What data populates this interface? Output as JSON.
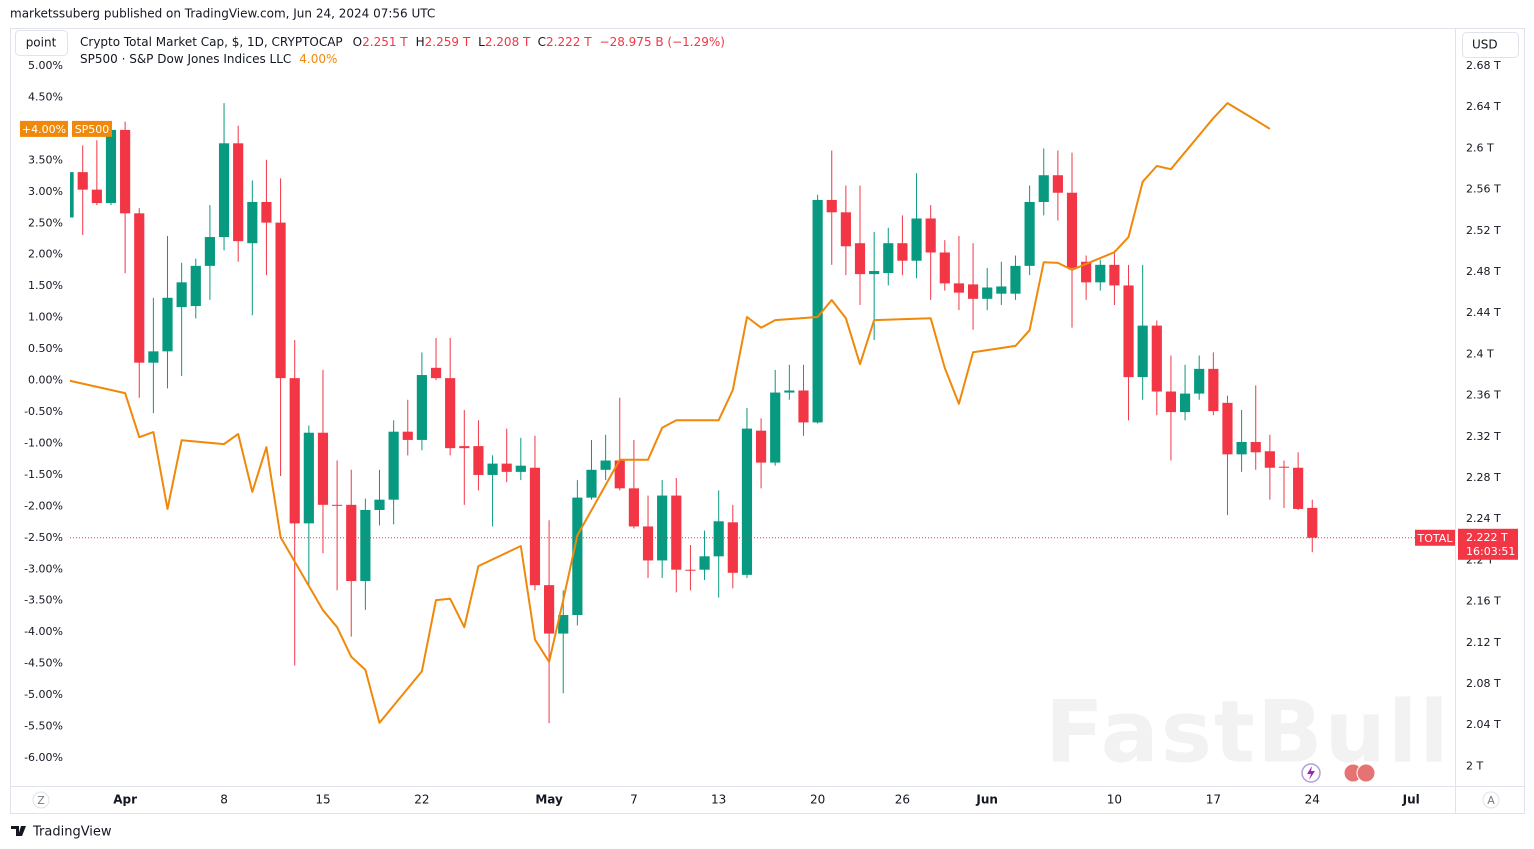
{
  "page": {
    "published": "marketssuberg published on TradingView.com, Jun 24, 2024 07:56 UTC",
    "mode_button": "point",
    "currency_button": "USD",
    "zoom_left": "Z",
    "zoom_right": "A",
    "brand": "TradingView",
    "watermark": "FastBull"
  },
  "chart_data": {
    "type": "candlestick",
    "title": "Crypto Total Market Cap, $, 1D, CRYPTOCAP",
    "ohlc_legend": [
      {
        "key": "O",
        "value": "2.251 T"
      },
      {
        "key": "H",
        "value": "2.259 T"
      },
      {
        "key": "L",
        "value": "2.208 T"
      },
      {
        "key": "C",
        "value": "2.222 T"
      }
    ],
    "change": "−28.975 B (−1.29%)",
    "xlim": [
      -3.9,
      94.1
    ],
    "xticks": [
      {
        "value": 0,
        "label": "Apr"
      },
      {
        "value": 7,
        "label": "8"
      },
      {
        "value": 14,
        "label": "15"
      },
      {
        "value": 21,
        "label": "22"
      },
      {
        "value": 30,
        "label": "May"
      },
      {
        "value": 36,
        "label": "7"
      },
      {
        "value": 42,
        "label": "13"
      },
      {
        "value": 49,
        "label": "20"
      },
      {
        "value": 55,
        "label": "26"
      },
      {
        "value": 61,
        "label": "Jun"
      },
      {
        "value": 70,
        "label": "10"
      },
      {
        "value": 77,
        "label": "17"
      },
      {
        "value": 84,
        "label": "24"
      },
      {
        "value": 91,
        "label": "Jul"
      }
    ],
    "ylim": [
      -6.445,
      5.572
    ],
    "yticks": [
      {
        "value": 5,
        "label": "5.00%"
      },
      {
        "value": 4.5,
        "label": "4.50%"
      },
      {
        "value": 4,
        "label": "4.00%"
      },
      {
        "value": 3.5,
        "label": "3.50%"
      },
      {
        "value": 3,
        "label": "3.00%"
      },
      {
        "value": 2.5,
        "label": "2.50%"
      },
      {
        "value": 2,
        "label": "2.00%"
      },
      {
        "value": 1.5,
        "label": "1.50%"
      },
      {
        "value": 1,
        "label": "1.00%"
      },
      {
        "value": 0.5,
        "label": "0.50%"
      },
      {
        "value": 0,
        "label": "0.00%"
      },
      {
        "value": -0.5,
        "label": "-0.50%"
      },
      {
        "value": -1,
        "label": "-1.00%"
      },
      {
        "value": -1.5,
        "label": "-1.50%"
      },
      {
        "value": -2,
        "label": "-2.00%"
      },
      {
        "value": -2.5,
        "label": "-2.50%"
      },
      {
        "value": -3,
        "label": "-3.00%"
      },
      {
        "value": -3.5,
        "label": "-3.50%"
      },
      {
        "value": -4,
        "label": "-4.00%"
      },
      {
        "value": -4.5,
        "label": "-4.50%"
      },
      {
        "value": -5,
        "label": "-5.00%"
      },
      {
        "value": -5.5,
        "label": "-5.50%"
      },
      {
        "value": -6,
        "label": "-6.00%"
      }
    ],
    "y2lim": [
      1.981,
      2.715
    ],
    "y2ticks": [
      {
        "value": 2.68,
        "label": "2.68 T"
      },
      {
        "value": 2.64,
        "label": "2.64 T"
      },
      {
        "value": 2.6,
        "label": "2.6 T"
      },
      {
        "value": 2.56,
        "label": "2.56 T"
      },
      {
        "value": 2.52,
        "label": "2.52 T"
      },
      {
        "value": 2.48,
        "label": "2.48 T"
      },
      {
        "value": 2.44,
        "label": "2.44 T"
      },
      {
        "value": 2.4,
        "label": "2.4 T"
      },
      {
        "value": 2.36,
        "label": "2.36 T"
      },
      {
        "value": 2.32,
        "label": "2.32 T"
      },
      {
        "value": 2.28,
        "label": "2.28 T"
      },
      {
        "value": 2.24,
        "label": "2.24 T"
      },
      {
        "value": 2.2,
        "label": "2.2 T"
      },
      {
        "value": 2.16,
        "label": "2.16 T"
      },
      {
        "value": 2.12,
        "label": "2.12 T"
      },
      {
        "value": 2.08,
        "label": "2.08 T"
      },
      {
        "value": 2.04,
        "label": "2.04 T"
      },
      {
        "value": 2,
        "label": "2 T"
      }
    ],
    "grid": false,
    "series": [
      {
        "name": "TOTAL",
        "type": "candlestick",
        "axis": "y2",
        "up_color": "#089981",
        "down_color": "#f23645",
        "last_label": "2.222 T",
        "countdown": "16:03:51",
        "x": [
          -4,
          -3,
          -2,
          -1,
          0,
          1,
          2,
          3,
          4,
          5,
          6,
          7,
          8,
          9,
          10,
          11,
          12,
          13,
          14,
          15,
          16,
          17,
          18,
          19,
          20,
          21,
          22,
          23,
          24,
          25,
          26,
          27,
          28,
          29,
          30,
          31,
          32,
          33,
          34,
          35,
          36,
          37,
          38,
          39,
          40,
          41,
          42,
          43,
          44,
          45,
          46,
          47,
          48,
          49,
          50,
          51,
          52,
          53,
          54,
          55,
          56,
          57,
          58,
          59,
          60,
          61,
          62,
          63,
          64,
          65,
          66,
          67,
          68,
          69,
          70,
          71,
          72,
          73,
          74,
          75,
          76,
          77,
          78,
          79,
          80,
          81,
          82,
          83,
          84
        ],
        "open": [
          2.533,
          2.577,
          2.56,
          2.547,
          2.618,
          2.537,
          2.392,
          2.403,
          2.446,
          2.447,
          2.486,
          2.514,
          2.605,
          2.508,
          2.548,
          2.528,
          2.377,
          2.236,
          2.324,
          2.254,
          2.254,
          2.18,
          2.249,
          2.259,
          2.325,
          2.317,
          2.387,
          2.377,
          2.311,
          2.311,
          2.283,
          2.294,
          2.286,
          2.29,
          2.176,
          2.129,
          2.147,
          2.261,
          2.288,
          2.297,
          2.27,
          2.233,
          2.2,
          2.263,
          2.191,
          2.191,
          2.204,
          2.237,
          2.186,
          2.326,
          2.295,
          2.363,
          2.365,
          2.334,
          2.55,
          2.538,
          2.508,
          2.478,
          2.479,
          2.508,
          2.491,
          2.532,
          2.499,
          2.469,
          2.468,
          2.454,
          2.459,
          2.459,
          2.486,
          2.548,
          2.574,
          2.557,
          2.49,
          2.47,
          2.487,
          2.467,
          2.378,
          2.428,
          2.364,
          2.344,
          2.362,
          2.386,
          2.353,
          2.303,
          2.315,
          2.306,
          2.291,
          2.29,
          2.251
        ],
        "high": [
          2.579,
          2.603,
          2.608,
          2.623,
          2.626,
          2.542,
          2.455,
          2.515,
          2.489,
          2.493,
          2.545,
          2.644,
          2.622,
          2.569,
          2.589,
          2.571,
          2.414,
          2.331,
          2.385,
          2.297,
          2.288,
          2.26,
          2.288,
          2.336,
          2.356,
          2.402,
          2.416,
          2.416,
          2.346,
          2.336,
          2.302,
          2.328,
          2.319,
          2.321,
          2.239,
          2.171,
          2.278,
          2.317,
          2.322,
          2.358,
          2.317,
          2.263,
          2.278,
          2.28,
          2.215,
          2.229,
          2.268,
          2.254,
          2.348,
          2.338,
          2.385,
          2.39,
          2.39,
          2.555,
          2.598,
          2.564,
          2.564,
          2.519,
          2.523,
          2.535,
          2.576,
          2.545,
          2.511,
          2.515,
          2.508,
          2.484,
          2.49,
          2.496,
          2.564,
          2.6,
          2.598,
          2.596,
          2.496,
          2.492,
          2.501,
          2.487,
          2.487,
          2.433,
          2.399,
          2.39,
          2.399,
          2.402,
          2.36,
          2.346,
          2.37,
          2.322,
          2.297,
          2.305,
          2.259
        ],
        "low": [
          2.532,
          2.516,
          2.545,
          2.545,
          2.479,
          2.358,
          2.343,
          2.367,
          2.379,
          2.435,
          2.453,
          2.501,
          2.49,
          2.438,
          2.477,
          2.282,
          2.098,
          2.175,
          2.207,
          2.171,
          2.126,
          2.152,
          2.234,
          2.235,
          2.302,
          2.307,
          2.375,
          2.302,
          2.254,
          2.268,
          2.233,
          2.276,
          2.278,
          2.171,
          2.042,
          2.071,
          2.137,
          2.259,
          2.278,
          2.268,
          2.231,
          2.183,
          2.183,
          2.169,
          2.171,
          2.181,
          2.164,
          2.173,
          2.183,
          2.27,
          2.292,
          2.356,
          2.321,
          2.333,
          2.487,
          2.477,
          2.448,
          2.414,
          2.467,
          2.477,
          2.474,
          2.453,
          2.462,
          2.443,
          2.424,
          2.443,
          2.448,
          2.453,
          2.477,
          2.535,
          2.53,
          2.426,
          2.453,
          2.462,
          2.448,
          2.336,
          2.356,
          2.341,
          2.297,
          2.336,
          2.356,
          2.341,
          2.244,
          2.286,
          2.288,
          2.259,
          2.251,
          2.249,
          2.208
        ],
        "close": [
          2.577,
          2.56,
          2.547,
          2.618,
          2.537,
          2.392,
          2.403,
          2.455,
          2.47,
          2.486,
          2.514,
          2.605,
          2.51,
          2.548,
          2.528,
          2.377,
          2.236,
          2.324,
          2.254,
          2.253,
          2.18,
          2.249,
          2.259,
          2.325,
          2.317,
          2.38,
          2.377,
          2.309,
          2.309,
          2.283,
          2.294,
          2.286,
          2.292,
          2.176,
          2.129,
          2.147,
          2.261,
          2.288,
          2.297,
          2.27,
          2.233,
          2.2,
          2.263,
          2.191,
          2.19,
          2.204,
          2.238,
          2.188,
          2.328,
          2.295,
          2.363,
          2.365,
          2.334,
          2.55,
          2.538,
          2.505,
          2.478,
          2.481,
          2.508,
          2.491,
          2.532,
          2.499,
          2.469,
          2.46,
          2.454,
          2.465,
          2.466,
          2.486,
          2.548,
          2.574,
          2.557,
          2.484,
          2.47,
          2.487,
          2.467,
          2.378,
          2.428,
          2.364,
          2.344,
          2.362,
          2.386,
          2.345,
          2.303,
          2.315,
          2.305,
          2.29,
          2.29,
          2.25,
          2.222
        ]
      },
      {
        "name": "SP500",
        "type": "line",
        "axis": "y",
        "color": "#f0880a",
        "description": "SP500 · S&P Dow Jones Indices LLC",
        "legend_value": "4.00%",
        "last_label": "+4.00%",
        "x": [
          -4,
          0,
          1,
          2,
          3,
          4,
          7,
          8,
          9,
          10,
          11,
          14,
          15,
          16,
          17,
          18,
          21,
          22,
          23,
          24,
          25,
          28,
          29,
          30,
          31,
          32,
          35,
          36,
          37,
          38,
          39,
          42,
          43,
          44,
          45,
          46,
          49,
          50,
          51,
          52,
          53,
          57,
          58,
          59,
          60,
          63,
          64,
          65,
          66,
          67,
          70,
          71,
          72,
          73,
          74,
          77,
          78,
          80,
          81
        ],
        "values": [
          0.0,
          -0.2,
          -0.9,
          -0.82,
          -2.04,
          -0.95,
          -1.01,
          -0.85,
          -1.77,
          -1.06,
          -2.49,
          -3.65,
          -3.92,
          -4.39,
          -4.6,
          -5.44,
          -4.62,
          -3.49,
          -3.47,
          -3.92,
          -2.95,
          -2.63,
          -4.12,
          -4.47,
          -3.49,
          -2.46,
          -1.26,
          -1.26,
          -1.26,
          -0.75,
          -0.63,
          -0.63,
          -0.15,
          1.01,
          0.84,
          0.96,
          1.01,
          1.28,
          0.99,
          0.26,
          0.96,
          0.99,
          0.2,
          -0.37,
          0.45,
          0.55,
          0.8,
          1.88,
          1.87,
          1.76,
          2.04,
          2.28,
          3.16,
          3.41,
          3.36,
          4.17,
          4.41,
          4.14,
          4.0
        ]
      }
    ]
  }
}
